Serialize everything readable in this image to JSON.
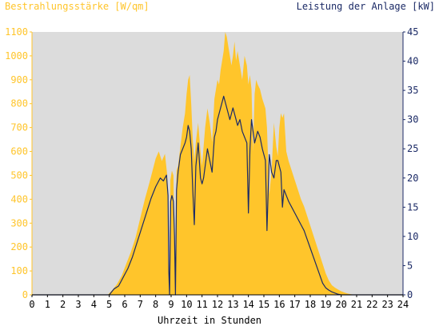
{
  "chart_data": {
    "type": "area",
    "left_axis_label": "Bestrahlungsstärke [W/qm]",
    "right_axis_label": "Leistung der Anlage [kW]",
    "xlabel": "Uhrzeit in Stunden",
    "x_range": [
      0,
      24
    ],
    "x_ticks": [
      0,
      1,
      2,
      3,
      4,
      5,
      6,
      7,
      8,
      9,
      10,
      11,
      12,
      13,
      14,
      15,
      16,
      17,
      18,
      19,
      20,
      21,
      22,
      23,
      24
    ],
    "y_left_range": [
      0,
      1100
    ],
    "y_left_ticks": [
      0,
      100,
      200,
      300,
      400,
      500,
      600,
      700,
      800,
      900,
      1000,
      1100
    ],
    "y_right_range": [
      0,
      45
    ],
    "y_right_ticks": [
      0,
      5,
      10,
      15,
      20,
      25,
      30,
      35,
      40,
      45
    ],
    "grid": false,
    "colors": {
      "irradiance_fill": "#ffc52b",
      "power_line": "#1b2a66",
      "plot_background": "#dcdcdc"
    },
    "series": [
      {
        "axis": "left",
        "style": "area",
        "x": [
          0,
          4.9,
          5.2,
          5.5,
          5.8,
          6.1,
          6.4,
          6.7,
          7.0,
          7.3,
          7.6,
          7.8,
          8.0,
          8.2,
          8.4,
          8.6,
          8.75,
          8.82,
          8.88,
          8.95,
          9.05,
          9.15,
          9.22,
          9.28,
          9.35,
          9.45,
          9.6,
          9.75,
          9.9,
          10.0,
          10.1,
          10.2,
          10.3,
          10.4,
          10.5,
          10.6,
          10.75,
          10.9,
          11.0,
          11.1,
          11.2,
          11.35,
          11.5,
          11.65,
          11.8,
          11.9,
          12.0,
          12.1,
          12.2,
          12.3,
          12.4,
          12.5,
          12.6,
          12.7,
          12.8,
          12.9,
          13.0,
          13.1,
          13.2,
          13.3,
          13.45,
          13.6,
          13.75,
          13.9,
          14.0,
          14.1,
          14.2,
          14.3,
          14.4,
          14.5,
          14.6,
          14.75,
          14.9,
          15.0,
          15.1,
          15.2,
          15.35,
          15.5,
          15.65,
          15.8,
          15.9,
          16.0,
          16.1,
          16.2,
          16.3,
          16.45,
          16.6,
          16.8,
          17.0,
          17.2,
          17.4,
          17.6,
          17.8,
          18.0,
          18.2,
          18.4,
          18.6,
          18.8,
          19.0,
          19.2,
          19.4,
          19.6,
          19.8,
          20.0,
          20.2,
          20.4,
          20.6,
          20.8,
          21.0,
          21.3,
          24
        ],
        "values": [
          0,
          0,
          20,
          45,
          80,
          130,
          180,
          240,
          320,
          400,
          470,
          520,
          570,
          600,
          560,
          590,
          500,
          100,
          0,
          480,
          520,
          500,
          200,
          0,
          520,
          540,
          620,
          700,
          760,
          840,
          900,
          920,
          800,
          650,
          560,
          640,
          720,
          600,
          540,
          620,
          700,
          780,
          720,
          640,
          820,
          860,
          900,
          880,
          940,
          980,
          1020,
          1100,
          1080,
          1040,
          1000,
          960,
          1000,
          1060,
          980,
          1020,
          960,
          900,
          1000,
          960,
          880,
          920,
          860,
          600,
          840,
          900,
          880,
          860,
          820,
          800,
          780,
          700,
          420,
          520,
          720,
          620,
          580,
          700,
          760,
          740,
          760,
          600,
          560,
          520,
          480,
          440,
          400,
          370,
          330,
          290,
          250,
          210,
          170,
          130,
          90,
          60,
          40,
          30,
          22,
          15,
          10,
          6,
          3,
          1,
          0,
          0,
          0
        ],
        "name": ""
      },
      {
        "axis": "right",
        "style": "line",
        "x": [
          0,
          5.0,
          5.3,
          5.6,
          5.9,
          6.2,
          6.5,
          6.8,
          7.1,
          7.4,
          7.7,
          8.0,
          8.3,
          8.5,
          8.7,
          8.8,
          8.85,
          8.9,
          8.97,
          9.05,
          9.15,
          9.22,
          9.28,
          9.35,
          9.45,
          9.6,
          9.75,
          9.9,
          10.0,
          10.1,
          10.2,
          10.3,
          10.4,
          10.5,
          10.6,
          10.75,
          10.9,
          11.0,
          11.1,
          11.2,
          11.35,
          11.5,
          11.65,
          11.8,
          11.9,
          12.0,
          12.1,
          12.2,
          12.3,
          12.4,
          12.5,
          12.6,
          12.7,
          12.8,
          12.9,
          13.0,
          13.1,
          13.2,
          13.3,
          13.45,
          13.6,
          13.75,
          13.9,
          14.0,
          14.1,
          14.2,
          14.3,
          14.4,
          14.5,
          14.6,
          14.75,
          14.9,
          15.0,
          15.1,
          15.2,
          15.35,
          15.5,
          15.65,
          15.8,
          15.9,
          16.0,
          16.1,
          16.2,
          16.3,
          16.45,
          16.6,
          16.8,
          17.0,
          17.2,
          17.4,
          17.6,
          17.8,
          18.0,
          18.2,
          18.4,
          18.6,
          18.8,
          19.0,
          19.2,
          19.4,
          19.6,
          19.8,
          20.0,
          20.2,
          20.4,
          20.6,
          24
        ],
        "values": [
          0,
          0,
          1,
          1.5,
          3,
          4.5,
          6.5,
          9,
          11.5,
          14,
          16.5,
          18.5,
          20,
          19.5,
          20.5,
          17,
          4,
          0,
          16,
          17,
          16,
          10,
          0,
          18,
          21,
          24,
          25,
          26,
          27,
          29,
          28,
          25,
          18,
          12,
          22,
          26,
          20,
          19,
          20,
          22,
          25,
          23,
          21,
          27,
          28,
          30,
          31,
          32,
          33,
          34,
          33,
          32,
          31,
          30,
          31,
          32,
          31,
          30,
          29,
          30,
          28,
          27,
          26,
          14,
          25,
          30,
          28,
          26,
          27,
          28,
          27,
          25,
          24,
          23,
          11,
          24,
          21,
          20,
          23,
          23,
          22,
          21,
          15,
          18,
          17,
          16,
          15,
          14,
          13,
          12,
          11,
          9.5,
          8,
          6.5,
          5,
          3.5,
          2,
          1.2,
          0.8,
          0.5,
          0.3,
          0.1,
          0,
          0,
          0,
          0,
          0
        ],
        "name": ""
      }
    ]
  }
}
